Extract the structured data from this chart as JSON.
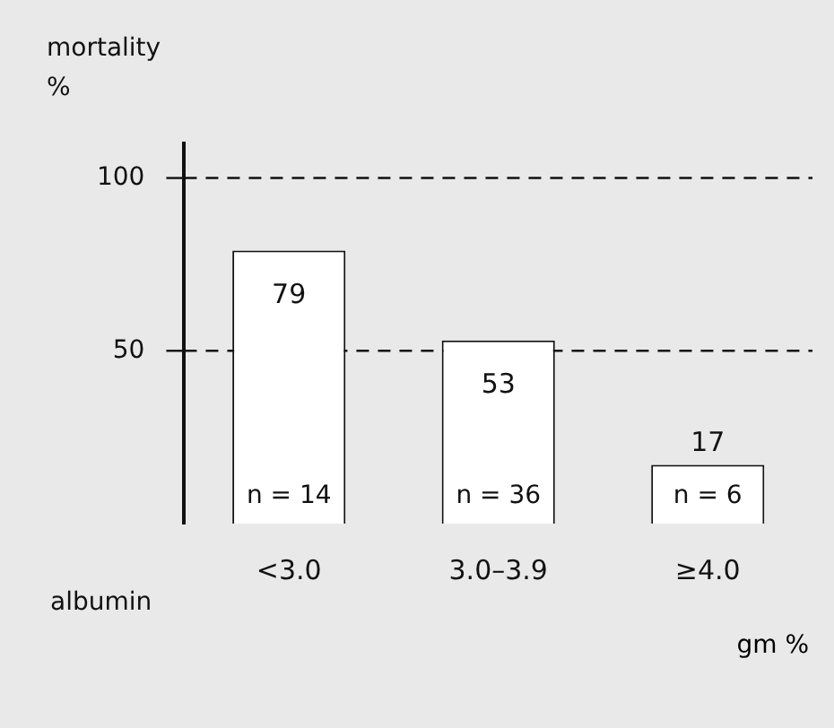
{
  "chart_data": {
    "type": "bar",
    "ylabel": "mortality %",
    "xlabel": "albumin",
    "categories": [
      "<3.0",
      "3.0–3.9",
      "≥4.0"
    ],
    "values": [
      79,
      53,
      17
    ],
    "color": "#ffffff",
    "ylim": [
      0,
      110
    ],
    "yticks": [
      50,
      100
    ],
    "grid": "y",
    "line_style": "dashed",
    "data_labels": true,
    "annotations": [
      "n = 14",
      "n = 36",
      "n = 6",
      "gm %"
    ]
  }
}
